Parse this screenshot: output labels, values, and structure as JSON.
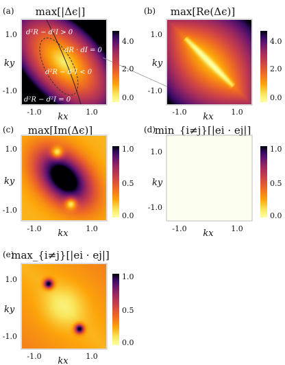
{
  "chart_data": [
    {
      "type": "heatmap",
      "panel_label": "(a)",
      "title": "max[|Δϵ|]",
      "xlabel": "kx",
      "ylabel": "ky",
      "x_ticks": [
        "-1.0",
        "1.0"
      ],
      "y_ticks": [
        "1.0",
        "-1.0"
      ],
      "colorbar_ticks": [
        "4.0",
        "2.0",
        "0.0"
      ],
      "colorbar_range": [
        0,
        5
      ],
      "colormap": "inferno_reversed",
      "annotations": [
        "d²R − d²I > 0",
        "dR · dI = 0",
        "d²R − d²I < 0",
        "d²R − d²I = 0"
      ]
    },
    {
      "type": "heatmap",
      "panel_label": "(b)",
      "title": "max[Re(Δϵ)]",
      "xlabel": "kx",
      "ylabel": "ky",
      "x_ticks": [
        "-1.0",
        "1.0"
      ],
      "y_ticks": [
        "1.0",
        "-1.0"
      ],
      "colorbar_ticks": [
        "4.0",
        "2.0",
        "0.0"
      ],
      "colorbar_range": [
        0,
        5
      ],
      "colormap": "inferno_reversed"
    },
    {
      "type": "heatmap",
      "panel_label": "(c)",
      "title": "max[Im(Δϵ)]",
      "xlabel": "kx",
      "ylabel": "ky",
      "x_ticks": [
        "-1.0",
        "1.0"
      ],
      "y_ticks": [
        "1.0",
        "-1.0"
      ],
      "colorbar_ticks": [
        "1.0",
        "0.5",
        "0.0"
      ],
      "colorbar_range": [
        0,
        1
      ],
      "colormap": "inferno_reversed"
    },
    {
      "type": "heatmap",
      "panel_label": "(d)",
      "title": "min_{i≠j}[|ei · ej|]",
      "xlabel": "kx",
      "ylabel": "ky",
      "x_ticks": [
        "-1.0",
        "1.0"
      ],
      "y_ticks": [
        "1.0",
        "-1.0"
      ],
      "colorbar_ticks": [
        "1.0",
        "0.5",
        "0.0"
      ],
      "colorbar_range": [
        0,
        1
      ],
      "colormap": "inferno_reversed"
    },
    {
      "type": "heatmap",
      "panel_label": "(e)",
      "title": "max_{i≠j}[|ei · ej|]",
      "xlabel": "kx",
      "ylabel": "ky",
      "x_ticks": [
        "-1.0",
        "1.0"
      ],
      "y_ticks": [
        "1.0",
        "-1.0"
      ],
      "colorbar_ticks": [
        "1.0",
        "0.5",
        "0.0"
      ],
      "colorbar_range": [
        0,
        1
      ],
      "colormap": "inferno_reversed"
    }
  ]
}
